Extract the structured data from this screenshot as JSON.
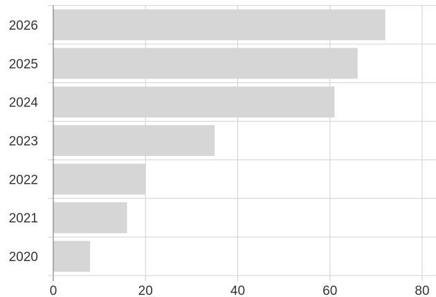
{
  "chart_data": {
    "type": "bar",
    "orientation": "horizontal",
    "categories": [
      "2020",
      "2021",
      "2022",
      "2023",
      "2024",
      "2025",
      "2026"
    ],
    "values": [
      8,
      16,
      20,
      35,
      61,
      66,
      72
    ],
    "xlim": [
      0,
      80
    ],
    "xticks": [
      "0",
      "20",
      "40",
      "60",
      "80"
    ],
    "grid": true,
    "legend": "none",
    "title": "",
    "xlabel": "",
    "ylabel": "",
    "colors": {
      "bar": "#d6d6d6",
      "grid": "#d0d0d0",
      "axis": "#888888"
    }
  }
}
